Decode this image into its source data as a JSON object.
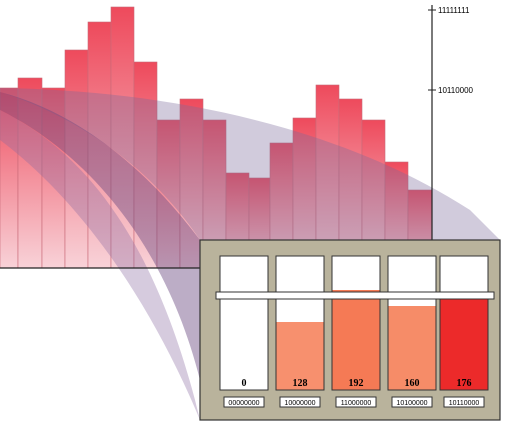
{
  "axis": {
    "labels": [
      "11111111",
      "10110000"
    ]
  },
  "tubes": [
    {
      "value": "0",
      "code": "00000000"
    },
    {
      "value": "128",
      "code": "10000000"
    },
    {
      "value": "192",
      "code": "11000000"
    },
    {
      "value": "160",
      "code": "10100000"
    },
    {
      "value": "176",
      "code": "10110000"
    }
  ]
}
